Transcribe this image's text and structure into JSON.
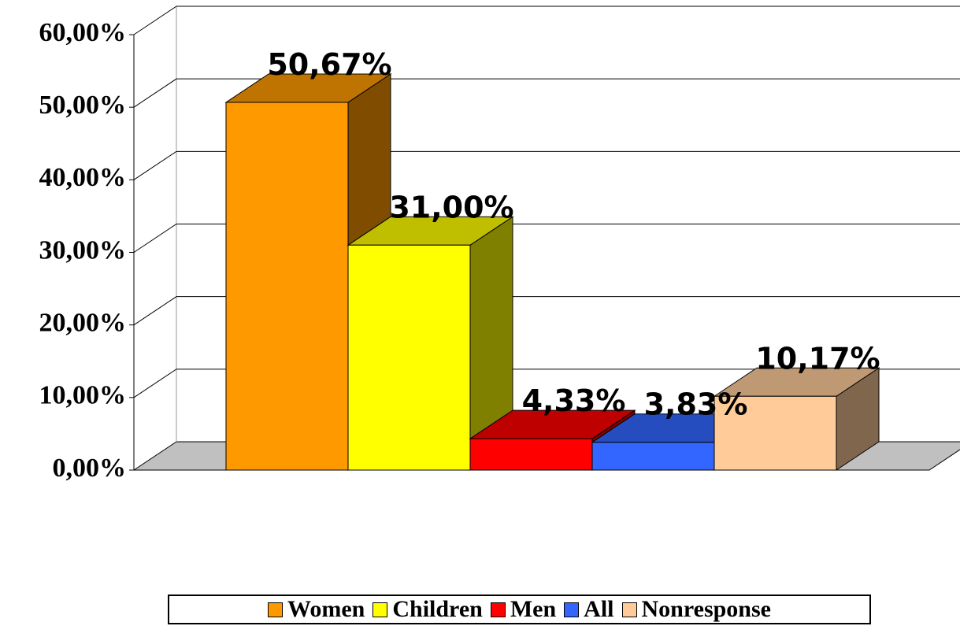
{
  "chart_data": {
    "type": "bar3d",
    "series": [
      {
        "name": "Women",
        "color": "#ff9900",
        "values": [
          50.67
        ],
        "value_labels": [
          "50,67%"
        ]
      },
      {
        "name": "Children",
        "color": "#ffff00",
        "values": [
          31.0
        ],
        "value_labels": [
          "31,00%"
        ]
      },
      {
        "name": "Men",
        "color": "#ff0000",
        "values": [
          4.33
        ],
        "value_labels": [
          "4,33%"
        ]
      },
      {
        "name": "All",
        "color": "#3366ff",
        "values": [
          3.83
        ],
        "value_labels": [
          "3,83%"
        ]
      },
      {
        "name": "Nonresponse",
        "color": "#ffcc99",
        "values": [
          10.17
        ],
        "value_labels": [
          "10,17%"
        ]
      }
    ],
    "ylim": [
      0,
      60
    ],
    "yticks": [
      {
        "value": 0,
        "label": "0,00%"
      },
      {
        "value": 10,
        "label": "10,00%"
      },
      {
        "value": 20,
        "label": "20,00%"
      },
      {
        "value": 30,
        "label": "30,00%"
      },
      {
        "value": 40,
        "label": "40,00%"
      },
      {
        "value": 50,
        "label": "50,00%"
      },
      {
        "value": 60,
        "label": "60,00%"
      }
    ],
    "grid": true,
    "legend": "bottom"
  }
}
